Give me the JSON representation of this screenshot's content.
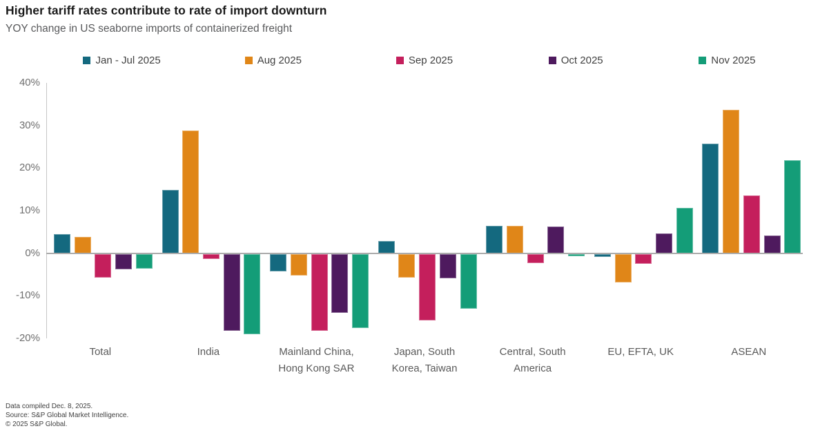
{
  "chart_data": {
    "type": "bar",
    "title": "Higher tariff rates contribute to rate of import downturn",
    "subtitle": "YOY change in US seaborne imports of containerized freight",
    "categories": [
      "Total",
      "India",
      "Mainland China, Hong Kong SAR",
      "Japan, South Korea, Taiwan",
      "Central, South America",
      "EU, EFTA, UK",
      "ASEAN"
    ],
    "series": [
      {
        "name": "Jan - Jul 2025",
        "color": "#14697f",
        "values": [
          4.5,
          14.9,
          -4.1,
          2.8,
          6.5,
          -0.7,
          25.7
        ]
      },
      {
        "name": "Aug 2025",
        "color": "#e08618",
        "values": [
          3.9,
          28.8,
          -5.1,
          -5.5,
          6.5,
          -6.7,
          33.6
        ]
      },
      {
        "name": "Sep 2025",
        "color": "#c41f5c",
        "values": [
          -5.6,
          -1.2,
          -18.0,
          -15.6,
          -2.2,
          -2.3,
          13.6
        ]
      },
      {
        "name": "Oct 2025",
        "color": "#4e1a5e",
        "values": [
          -3.6,
          -18.1,
          -13.9,
          -5.8,
          6.2,
          4.6,
          4.2
        ]
      },
      {
        "name": "Nov 2025",
        "color": "#149d78",
        "values": [
          -3.4,
          -18.9,
          -17.4,
          -12.8,
          -0.5,
          10.7,
          21.8
        ]
      }
    ],
    "xlabel": "",
    "ylabel": "",
    "ylim": [
      -20,
      40
    ],
    "yticks": [
      40,
      30,
      20,
      10,
      0,
      -10,
      -20
    ],
    "ytick_suffix": "%",
    "grid": false,
    "legend_position": "top"
  },
  "footer": {
    "lines": [
      "Data compiled Dec. 8, 2025.",
      "Source: S&P Global Market Intelligence.",
      "© 2025 S&P Global."
    ]
  }
}
